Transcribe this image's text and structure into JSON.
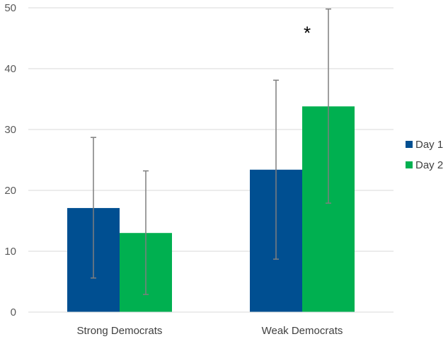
{
  "chart_data": {
    "type": "bar",
    "title": "",
    "xlabel": "",
    "ylabel": "",
    "categories": [
      "Strong Democrats",
      "Weak Democrats"
    ],
    "series": [
      {
        "name": "Day 1",
        "color": "#004f91",
        "values": [
          17.1,
          23.4
        ],
        "error_low": [
          5.6,
          8.7
        ],
        "error_high": [
          28.7,
          38.1
        ]
      },
      {
        "name": "Day 2",
        "color": "#00b050",
        "values": [
          13.0,
          33.8
        ],
        "error_low": [
          2.9,
          17.9
        ],
        "error_high": [
          23.2,
          49.8
        ]
      }
    ],
    "ylim": [
      0,
      50
    ],
    "yticks": [
      0,
      10,
      20,
      30,
      40,
      50
    ],
    "grid": true,
    "legend_position": "right",
    "annotations": [
      {
        "text": "*",
        "category": "Weak Democrats",
        "series": "Day 2"
      }
    ]
  }
}
